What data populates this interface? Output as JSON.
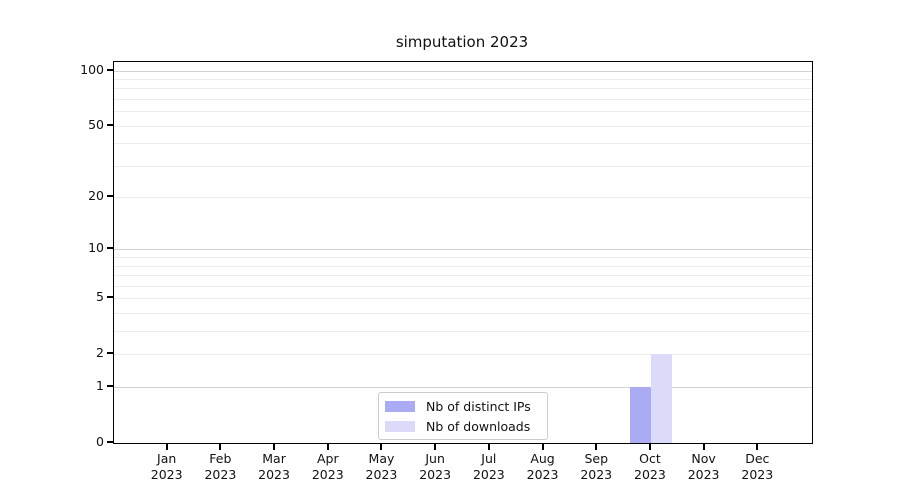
{
  "chart_data": {
    "type": "bar",
    "title": "simputation 2023",
    "categories": [
      "Jan",
      "Feb",
      "Mar",
      "Apr",
      "May",
      "Jun",
      "Jul",
      "Aug",
      "Sep",
      "Oct",
      "Nov",
      "Dec"
    ],
    "category_sublabel": "2023",
    "series": [
      {
        "name": "Nb of distinct IPs",
        "color": "#aaaaf5",
        "values": [
          0,
          0,
          0,
          0,
          0,
          0,
          0,
          0,
          0,
          1,
          0,
          0
        ]
      },
      {
        "name": "Nb of downloads",
        "color": "#dbdbf9",
        "values": [
          0,
          0,
          0,
          0,
          0,
          0,
          0,
          0,
          0,
          2,
          0,
          0
        ]
      }
    ],
    "yscale": "log1p",
    "ylim": [
      0,
      100
    ],
    "ytick_labels": [
      "0",
      "1",
      "2",
      "5",
      "10",
      "20",
      "50",
      "100"
    ],
    "ytick_values": [
      0,
      1,
      2,
      5,
      10,
      20,
      50,
      100
    ],
    "grid": {
      "major_values": [
        1,
        10,
        100
      ],
      "minor_values": [
        2,
        3,
        4,
        5,
        6,
        7,
        8,
        9,
        20,
        30,
        40,
        50,
        60,
        70,
        80,
        90
      ],
      "major_color": "#d2d2d2",
      "minor_color": "#ececec"
    },
    "legend_position": "lower center",
    "axis_color": "#000000",
    "background_color": "#ffffff"
  }
}
